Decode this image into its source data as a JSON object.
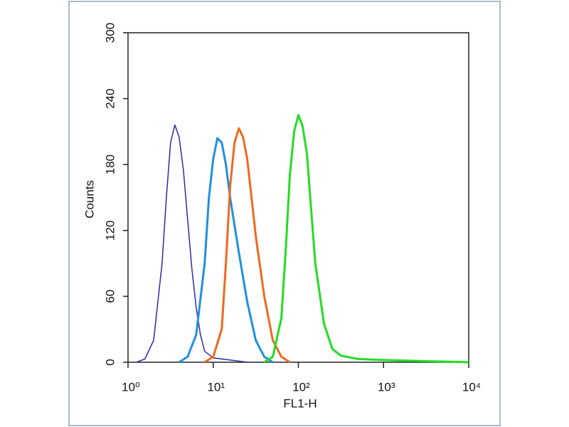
{
  "chart_data": {
    "type": "line",
    "xlabel": "FL1-H",
    "ylabel": "Counts",
    "xscale": "log",
    "xlim": [
      1,
      10000
    ],
    "xticks": [
      {
        "value": 1,
        "label": "10⁰"
      },
      {
        "value": 10,
        "label": "10¹"
      },
      {
        "value": 100,
        "label": "10²"
      },
      {
        "value": 1000,
        "label": "10³"
      },
      {
        "value": 10000,
        "label": "10⁴"
      }
    ],
    "ylim": [
      0,
      300
    ],
    "yticks": [
      0,
      60,
      120,
      180,
      240,
      300
    ],
    "series": [
      {
        "color": "#2b2ba6",
        "width": 1.5,
        "x": [
          1.26,
          1.58,
          2.0,
          2.51,
          2.82,
          3.16,
          3.55,
          3.98,
          4.47,
          5.01,
          5.62,
          6.31,
          7.08,
          7.94,
          10,
          15.8,
          25.1
        ],
        "values": [
          0,
          3,
          20,
          90,
          150,
          200,
          216,
          205,
          175,
          130,
          85,
          50,
          25,
          10,
          4,
          2,
          0
        ]
      },
      {
        "color": "#1f8fe0",
        "width": 3,
        "x": [
          3.98,
          5.01,
          6.31,
          7.94,
          8.91,
          10,
          11.2,
          12.6,
          14.1,
          15.8,
          20,
          25.1,
          31.6,
          39.8,
          50.1
        ],
        "values": [
          0,
          5,
          25,
          90,
          150,
          185,
          204,
          200,
          180,
          150,
          100,
          55,
          20,
          5,
          0
        ]
      },
      {
        "color": "#f0681e",
        "width": 3,
        "x": [
          7.94,
          10,
          12.6,
          14.1,
          15.8,
          17.8,
          20,
          22.4,
          25.1,
          28.2,
          31.6,
          39.8,
          50.1,
          63.1,
          79.4
        ],
        "values": [
          0,
          5,
          30,
          90,
          160,
          200,
          213,
          205,
          185,
          150,
          115,
          60,
          20,
          5,
          0
        ]
      },
      {
        "color": "#22dd22",
        "width": 3,
        "x": [
          39.8,
          50.1,
          63.1,
          70.8,
          79.4,
          89.1,
          100,
          112,
          126,
          141,
          158,
          200,
          251,
          316,
          501,
          1000,
          3162,
          10000
        ],
        "values": [
          0,
          5,
          40,
          100,
          170,
          210,
          225,
          215,
          190,
          140,
          90,
          35,
          12,
          6,
          3,
          2,
          1,
          0
        ]
      }
    ]
  }
}
